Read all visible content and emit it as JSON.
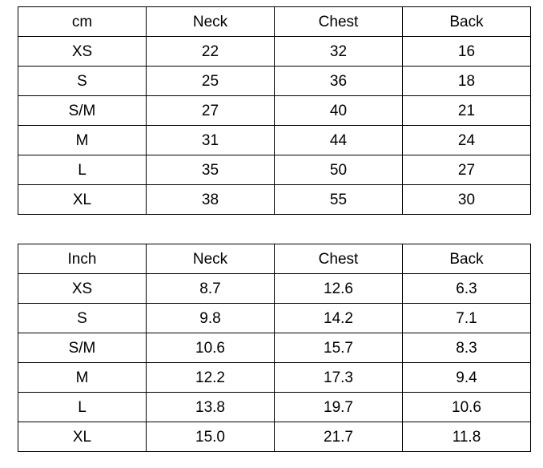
{
  "tables": [
    {
      "unit_header": "cm",
      "columns": [
        "Neck",
        "Chest",
        "Back"
      ],
      "rows": [
        {
          "size": "XS",
          "values": [
            "22",
            "32",
            "16"
          ]
        },
        {
          "size": "S",
          "values": [
            "25",
            "36",
            "18"
          ]
        },
        {
          "size": "S/M",
          "values": [
            "27",
            "40",
            "21"
          ]
        },
        {
          "size": "M",
          "values": [
            "31",
            "44",
            "24"
          ]
        },
        {
          "size": "L",
          "values": [
            "35",
            "50",
            "27"
          ]
        },
        {
          "size": "XL",
          "values": [
            "38",
            "55",
            "30"
          ]
        }
      ]
    },
    {
      "unit_header": "Inch",
      "columns": [
        "Neck",
        "Chest",
        "Back"
      ],
      "rows": [
        {
          "size": "XS",
          "values": [
            "8.7",
            "12.6",
            "6.3"
          ]
        },
        {
          "size": "S",
          "values": [
            "9.8",
            "14.2",
            "7.1"
          ]
        },
        {
          "size": "S/M",
          "values": [
            "10.6",
            "15.7",
            "8.3"
          ]
        },
        {
          "size": "M",
          "values": [
            "12.2",
            "17.3",
            "9.4"
          ]
        },
        {
          "size": "L",
          "values": [
            "13.8",
            "19.7",
            "10.6"
          ]
        },
        {
          "size": "XL",
          "values": [
            "15.0",
            "21.7",
            "11.8"
          ]
        }
      ]
    }
  ],
  "colors": {
    "border": "#000000",
    "text": "#000000",
    "background": "#ffffff"
  }
}
